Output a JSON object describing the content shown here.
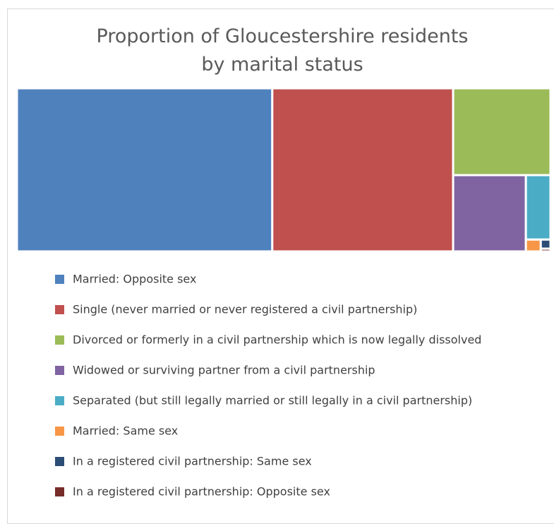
{
  "chart_data": {
    "type": "treemap",
    "title": "Proportion of Gloucestershire residents by marital status",
    "categories": [
      "Married: Opposite sex",
      "Single (never married or never registered a civil partnership)",
      "Divorced or formerly in a civil partnership which is now legally dissolved",
      "Widowed or surviving partner from a civil partnership",
      "Separated (but still legally married or still legally in a civil partnership)",
      "Married: Same sex",
      "In a registered civil partnership: Same sex",
      "In a registered civil partnership: Opposite sex"
    ],
    "values": [
      47.3,
      33.5,
      9.6,
      6.3,
      1.8,
      0.2,
      0.1,
      0.03
    ],
    "colors": [
      "#4f81bd",
      "#c0504d",
      "#9bbb59",
      "#8064a2",
      "#4bacc6",
      "#f79646",
      "#2c4d75",
      "#772c2a"
    ],
    "legend": "bottom"
  }
}
